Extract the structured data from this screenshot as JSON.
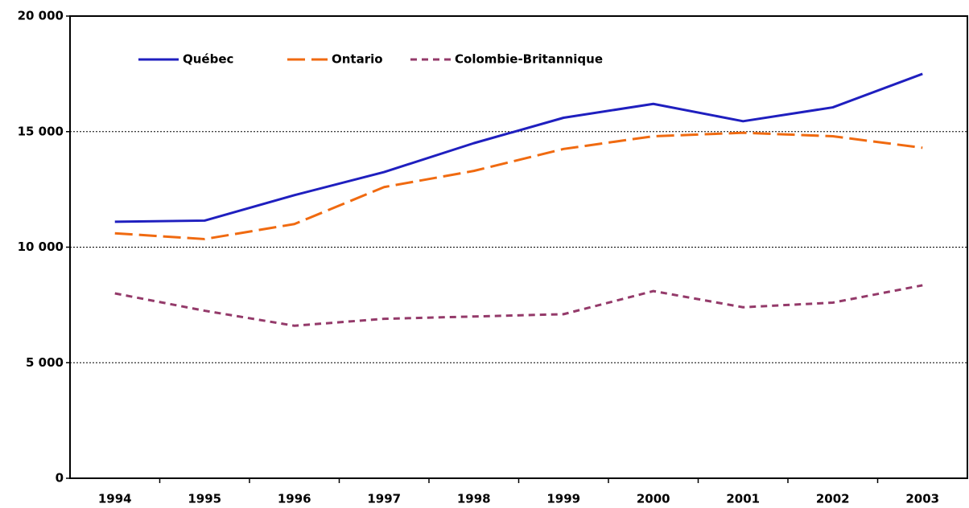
{
  "chart_data": {
    "type": "line",
    "categories": [
      "1994",
      "1995",
      "1996",
      "1997",
      "1998",
      "1999",
      "2000",
      "2001",
      "2002",
      "2003"
    ],
    "series": [
      {
        "name": "Québec",
        "color": "#1f1fbf",
        "dash": "solid",
        "values": [
          11100,
          11150,
          12250,
          13250,
          14500,
          15600,
          16200,
          15450,
          16050,
          17500
        ]
      },
      {
        "name": "Ontario",
        "color": "#f06a10",
        "dash": "long",
        "values": [
          10600,
          10350,
          11000,
          12600,
          13300,
          14250,
          14800,
          14950,
          14800,
          14300
        ]
      },
      {
        "name": "Colombie-Britannique",
        "color": "#943a6a",
        "dash": "short",
        "values": [
          8000,
          7250,
          6600,
          6900,
          7000,
          7100,
          8100,
          7400,
          7600,
          8350
        ]
      }
    ],
    "ylim": [
      0,
      20000
    ],
    "yticks": [
      0,
      {
        "value": 5000,
        "label": "5 000"
      },
      {
        "value": 10000,
        "label": "10 000"
      },
      {
        "value": 15000,
        "label": "15 000"
      },
      {
        "value": 20000,
        "label": "20 000"
      }
    ],
    "grid": true,
    "legend": "top-left"
  }
}
